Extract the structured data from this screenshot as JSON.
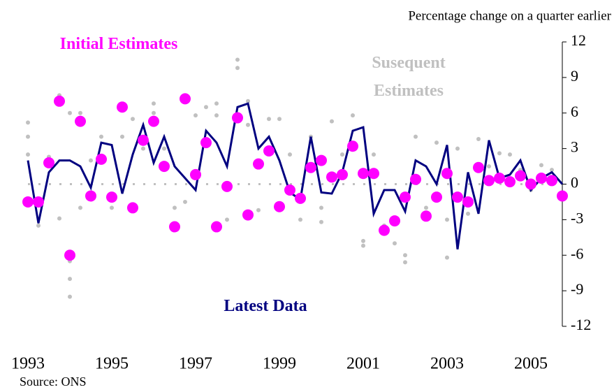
{
  "chart_data": {
    "type": "line",
    "subtitle": "Percentage change on a  quarter earlier",
    "source": "Source: ONS",
    "xlim": [
      1993,
      2005.75
    ],
    "xticks": [
      1993,
      1995,
      1997,
      1999,
      2001,
      2003,
      2005
    ],
    "ylim": [
      -12,
      12
    ],
    "yticks": [
      -12,
      -9,
      -6,
      -3,
      0,
      3,
      6,
      9,
      12
    ],
    "y_axis_side": "right",
    "series": [
      {
        "name": "Susequent Estimates",
        "type": "scatter",
        "color": "#c0c0c0",
        "x": [
          1993,
          1993,
          1993,
          1993.25,
          1993.5,
          1993.75,
          1993.75,
          1994,
          1994,
          1994,
          1994,
          1994.25,
          1994.25,
          1994.5,
          1994.75,
          1995,
          1995.25,
          1995.5,
          1995.75,
          1996,
          1996,
          1996.25,
          1996.5,
          1996.75,
          1997,
          1997.25,
          1997.5,
          1997.5,
          1997.75,
          1998,
          1998,
          1998.25,
          1998.25,
          1998.5,
          1998.75,
          1999,
          1999.25,
          1999.5,
          1999.75,
          2000,
          2000,
          2000.25,
          2000.5,
          2000.75,
          2001,
          2001,
          2001.25,
          2001.5,
          2001.75,
          2002,
          2002,
          2002.25,
          2002.5,
          2002.75,
          2003,
          2003,
          2003.25,
          2003.5,
          2003.75,
          2004,
          2004.25,
          2004.5,
          2004.75,
          2005,
          2005.25,
          2005.5
        ],
        "values": [
          5.2,
          4,
          2.5,
          -3.5,
          2.3,
          7.5,
          -2.9,
          6,
          -8,
          -9.5,
          -6.5,
          6,
          -2,
          2,
          4,
          -2,
          4,
          5.5,
          3,
          6.8,
          6,
          3,
          -2,
          -1.5,
          5.8,
          6.5,
          6.8,
          5.8,
          -3,
          10.5,
          9.8,
          7,
          5,
          -2.2,
          5.5,
          5.5,
          2.5,
          -3,
          4,
          -3.2,
          -2,
          5.3,
          2.5,
          5.8,
          -4.8,
          -5.2,
          2.5,
          -3.5,
          -5,
          -6.6,
          -6,
          4,
          -2,
          3.5,
          -6.2,
          -3,
          3,
          -2.5,
          3.8,
          1.5,
          2.6,
          2.5,
          1.2,
          -0.5,
          1.6,
          1.2
        ]
      },
      {
        "name": "Latest Data",
        "type": "line",
        "color": "#000080",
        "x": [
          1993,
          1993.25,
          1993.5,
          1993.75,
          1994,
          1994.25,
          1994.5,
          1994.75,
          1995,
          1995.25,
          1995.5,
          1995.75,
          1996,
          1996.25,
          1996.5,
          1996.75,
          1997,
          1997.25,
          1997.5,
          1997.75,
          1998,
          1998.25,
          1998.5,
          1998.75,
          1999,
          1999.25,
          1999.5,
          1999.75,
          2000,
          2000.25,
          2000.5,
          2000.75,
          2001,
          2001.25,
          2001.5,
          2001.75,
          2002,
          2002.25,
          2002.5,
          2002.75,
          2003,
          2003.25,
          2003.5,
          2003.75,
          2004,
          2004.25,
          2004.5,
          2004.75,
          2005,
          2005.25,
          2005.5,
          2005.75
        ],
        "values": [
          2,
          -3.3,
          1,
          2,
          2,
          1.5,
          -0.3,
          3.5,
          3.3,
          -0.8,
          2.5,
          5,
          1.8,
          4,
          1.5,
          0.5,
          -0.5,
          4.5,
          3.5,
          1.5,
          6.5,
          6.8,
          3,
          4,
          2,
          -0.7,
          -1.3,
          4,
          -0.7,
          -0.8,
          1,
          4.5,
          4.8,
          -2.5,
          -0.5,
          -0.5,
          -2.3,
          2,
          1.5,
          0,
          3.3,
          -5.5,
          1,
          -2.5,
          3.7,
          0.5,
          0.8,
          2,
          -0.5,
          0.5,
          1,
          0
        ]
      },
      {
        "name": "Initial Estimates",
        "type": "scatter",
        "color": "#ff00ff",
        "x": [
          1993,
          1993.25,
          1993.5,
          1993.75,
          1994,
          1994.25,
          1994.5,
          1994.75,
          1995,
          1995.25,
          1995.5,
          1995.75,
          1996,
          1996.25,
          1996.5,
          1996.75,
          1997,
          1997.25,
          1997.5,
          1997.75,
          1998,
          1998.25,
          1998.5,
          1998.75,
          1999,
          1999.25,
          1999.5,
          1999.75,
          2000,
          2000.25,
          2000.5,
          2000.75,
          2001,
          2001.25,
          2001.5,
          2001.75,
          2002,
          2002.25,
          2002.5,
          2002.75,
          2003,
          2003.25,
          2003.5,
          2003.75,
          2004,
          2004.25,
          2004.5,
          2004.75,
          2005,
          2005.25,
          2005.5,
          2005.75
        ],
        "values": [
          -1.5,
          -1.5,
          1.8,
          7,
          -6,
          5.3,
          -1,
          2.1,
          -1.1,
          6.5,
          -2,
          3.7,
          5.3,
          1.5,
          -3.6,
          7.2,
          0.8,
          3.5,
          -3.6,
          -0.2,
          5.6,
          -2.6,
          1.7,
          2.8,
          -1.9,
          -0.5,
          -1.2,
          1.4,
          2,
          0.6,
          0.8,
          3.2,
          0.9,
          0.9,
          -3.9,
          -3.1,
          -1.1,
          0.4,
          -2.7,
          -1.1,
          0.9,
          -1.1,
          -1.5,
          1.4,
          0.3,
          0.5,
          0.2,
          0.7,
          0,
          0.5,
          0.3,
          -1
        ]
      }
    ]
  }
}
